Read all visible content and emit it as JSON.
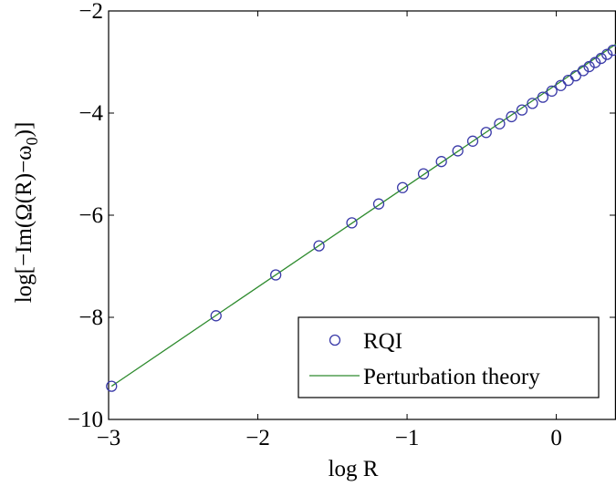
{
  "chart_data": {
    "type": "line",
    "xlabel": "log R",
    "ylabel": "log[−Im(Ω(R)−ω_0)]",
    "ylabel_parts": {
      "main": "log[−Im(Ω(R)−ω",
      "subscript": "0",
      "tail": ")]"
    },
    "xlim": [
      -3,
      0.4
    ],
    "ylim": [
      -10,
      -2
    ],
    "x_ticks": [
      -3,
      -2,
      -1,
      0
    ],
    "x_tick_labels": [
      "−3",
      "−2",
      "−1",
      "0"
    ],
    "y_ticks": [
      -10,
      -8,
      -6,
      -4,
      -2
    ],
    "y_tick_labels": [
      "−10",
      "−8",
      "−6",
      "−4",
      "−2"
    ],
    "grid": false,
    "legend_position": "bottom-right",
    "series": [
      {
        "name": "RQI",
        "style": "markers",
        "marker": "circle",
        "color": "#3a3aa8",
        "x": [
          -2.98,
          -2.28,
          -1.88,
          -1.59,
          -1.37,
          -1.19,
          -1.03,
          -0.89,
          -0.77,
          -0.66,
          -0.56,
          -0.47,
          -0.38,
          -0.3,
          -0.23,
          -0.16,
          -0.09,
          -0.03,
          0.03,
          0.08,
          0.13,
          0.18,
          0.22,
          0.26,
          0.3,
          0.34,
          0.38
        ],
        "y": [
          -9.35,
          -7.97,
          -7.17,
          -6.6,
          -6.15,
          -5.78,
          -5.46,
          -5.19,
          -4.95,
          -4.74,
          -4.55,
          -4.38,
          -4.21,
          -4.07,
          -3.94,
          -3.81,
          -3.69,
          -3.57,
          -3.46,
          -3.36,
          -3.27,
          -3.17,
          -3.09,
          -3.01,
          -2.93,
          -2.85,
          -2.77
        ]
      },
      {
        "name": "Perturbation theory",
        "style": "line",
        "color": "#2e8b2e",
        "x": [
          -2.98,
          0.4
        ],
        "y": [
          -9.35,
          -2.65
        ]
      }
    ]
  }
}
